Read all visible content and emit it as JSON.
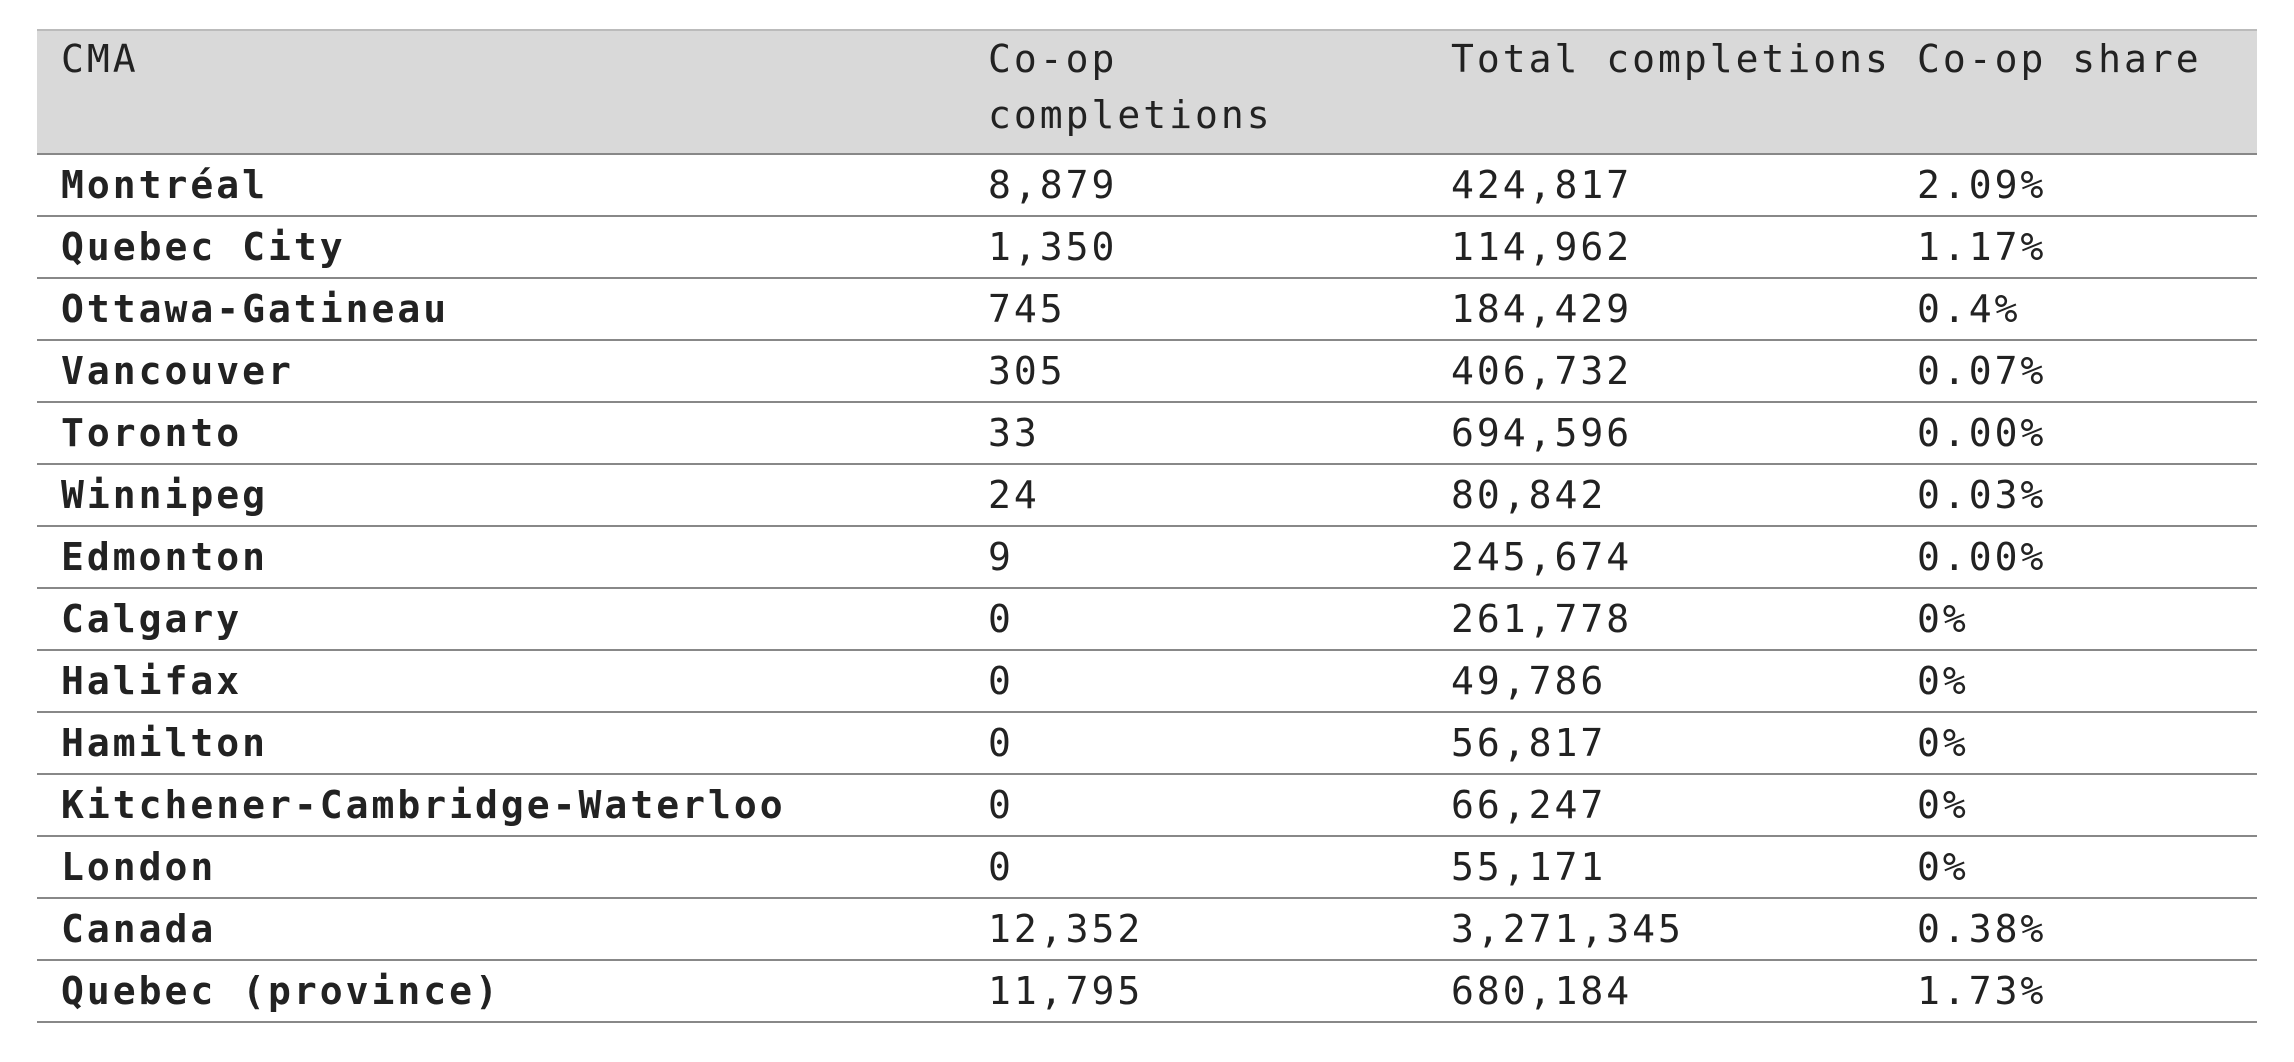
{
  "table": {
    "headers": [
      "CMA",
      "Co-op completions",
      "Total completions",
      "Co-op share"
    ],
    "rows": [
      [
        "Montréal",
        "8,879",
        "424,817",
        "2.09%"
      ],
      [
        "Quebec City",
        "1,350",
        "114,962",
        "1.17%"
      ],
      [
        "Ottawa-Gatineau",
        "745",
        "184,429",
        "0.4%"
      ],
      [
        "Vancouver",
        "305",
        "406,732",
        "0.07%"
      ],
      [
        "Toronto",
        "33",
        "694,596",
        "0.00%"
      ],
      [
        "Winnipeg",
        "24",
        "80,842",
        "0.03%"
      ],
      [
        "Edmonton",
        "9",
        "245,674",
        "0.00%"
      ],
      [
        "Calgary",
        "0",
        "261,778",
        "0%"
      ],
      [
        "Halifax",
        "0",
        "49,786",
        "0%"
      ],
      [
        "Hamilton",
        "0",
        "56,817",
        "0%"
      ],
      [
        "Kitchener-Cambridge-Waterloo",
        "0",
        "66,247",
        "0%"
      ],
      [
        "London",
        "0",
        "55,171",
        "0%"
      ],
      [
        "Canada",
        "12,352",
        "3,271,345",
        "0.38%"
      ],
      [
        "Quebec (province)",
        "11,795",
        "680,184",
        "1.73%"
      ]
    ]
  }
}
